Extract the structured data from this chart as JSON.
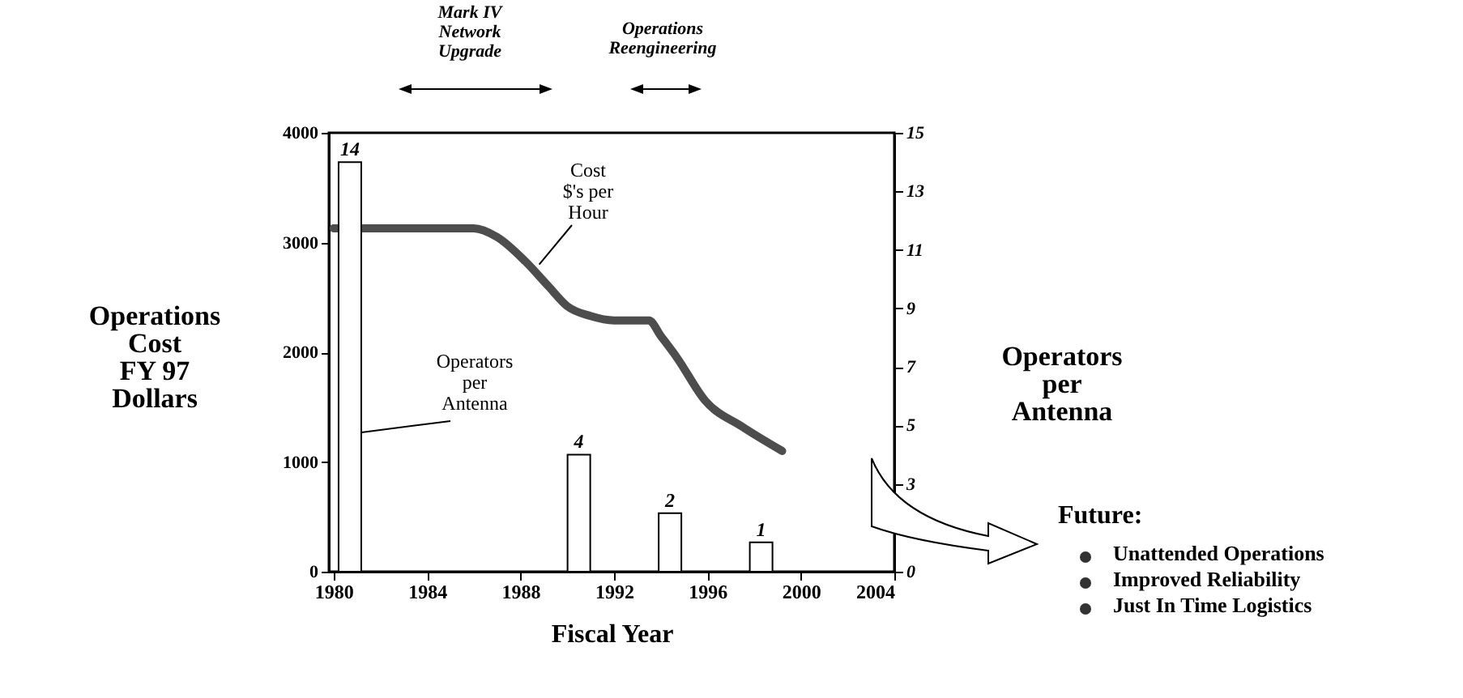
{
  "chart_data": {
    "type": "line",
    "xlabel": "Fiscal Year",
    "ylabel": "Operations Cost FY 97 Dollars",
    "y2label": "Operators per Antenna",
    "xlim": [
      1979.8,
      2004
    ],
    "xticks": [
      1980,
      1984,
      1988,
      1992,
      1996,
      2000,
      2004
    ],
    "ylim": [
      0,
      4000
    ],
    "yticks": [
      0,
      1000,
      2000,
      3000,
      4000
    ],
    "y2lim": [
      0,
      15
    ],
    "y2ticks": [
      0,
      3,
      5,
      7,
      9,
      11,
      13,
      15
    ],
    "series": [
      {
        "color": "#4d4d4d",
        "x": [
          1980,
          1983,
          1986,
          1987,
          1988.2,
          1989.2,
          1990,
          1991,
          1992,
          1993.5,
          1994,
          1994.7,
          1995.9,
          1997.5,
          1999.2
        ],
        "values": [
          3130,
          3130,
          3130,
          3050,
          2830,
          2600,
          2420,
          2330,
          2290,
          2290,
          2150,
          1950,
          1560,
          1320,
          1100
        ]
      },
      {
        "type": "bar",
        "axis": "y2",
        "color": "#ffffff",
        "x": [
          1980.7,
          1990.5,
          1994.4,
          1998.3
        ],
        "values": [
          14,
          4,
          2,
          1
        ],
        "value_labels": [
          "14",
          "4",
          "2",
          "1"
        ]
      }
    ],
    "annotations": [
      "Mark IV Network Upgrade",
      "Operations Reengineering",
      {
        "text": "Cost $'s per Hour",
        "x": 1988.8,
        "y": 2800
      },
      {
        "text": "Operators per Antenna",
        "x": 1981.2,
        "y": 1270
      },
      "Future:",
      "Unattended Operations",
      "Improved Reliability",
      "Just In Time Logistics"
    ]
  }
}
